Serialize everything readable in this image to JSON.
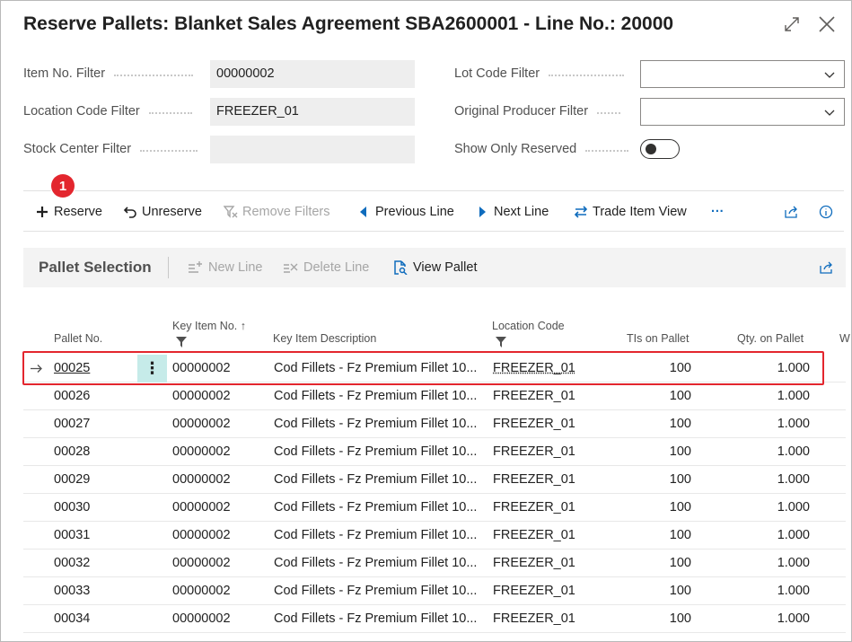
{
  "window": {
    "title": "Reserve Pallets: Blanket Sales Agreement SBA2600001 - Line No.: 20000",
    "expand_icon": "expand-icon",
    "close_icon": "close-icon"
  },
  "filters": {
    "item_no": {
      "label": "Item No. Filter",
      "value": "00000002"
    },
    "location_code": {
      "label": "Location Code Filter",
      "value": "FREEZER_01"
    },
    "stock_center": {
      "label": "Stock Center Filter",
      "value": ""
    },
    "lot_code": {
      "label": "Lot Code Filter",
      "value": ""
    },
    "original_producer": {
      "label": "Original Producer Filter",
      "value": ""
    },
    "show_only_reserved": {
      "label": "Show Only Reserved",
      "value": false
    }
  },
  "actions": {
    "reserve": "Reserve",
    "unreserve": "Unreserve",
    "remove_filters": "Remove Filters",
    "previous_line": "Previous Line",
    "next_line": "Next Line",
    "trade_item_view": "Trade Item View",
    "more": "···"
  },
  "badge": "1",
  "subpage": {
    "title": "Pallet Selection",
    "actions": {
      "new_line": "New Line",
      "delete_line": "Delete Line",
      "view_pallet": "View Pallet"
    },
    "columns": {
      "pallet_no": "Pallet No.",
      "key_item_no": "Key Item No.",
      "key_item_description": "Key Item Description",
      "location_code": "Location Code",
      "tis_on_pallet": "TIs on Pallet",
      "qty_on_pallet": "Qty. on Pallet",
      "extra": "W"
    },
    "rows": [
      {
        "pallet_no": "00025",
        "key_item_no": "00000002",
        "description": "Cod Fillets - Fz Premium Fillet 10...",
        "location": "FREEZER_01",
        "tis": "100",
        "qty": "1.000"
      },
      {
        "pallet_no": "00026",
        "key_item_no": "00000002",
        "description": "Cod Fillets - Fz Premium Fillet 10...",
        "location": "FREEZER_01",
        "tis": "100",
        "qty": "1.000"
      },
      {
        "pallet_no": "00027",
        "key_item_no": "00000002",
        "description": "Cod Fillets - Fz Premium Fillet 10...",
        "location": "FREEZER_01",
        "tis": "100",
        "qty": "1.000"
      },
      {
        "pallet_no": "00028",
        "key_item_no": "00000002",
        "description": "Cod Fillets - Fz Premium Fillet 10...",
        "location": "FREEZER_01",
        "tis": "100",
        "qty": "1.000"
      },
      {
        "pallet_no": "00029",
        "key_item_no": "00000002",
        "description": "Cod Fillets - Fz Premium Fillet 10...",
        "location": "FREEZER_01",
        "tis": "100",
        "qty": "1.000"
      },
      {
        "pallet_no": "00030",
        "key_item_no": "00000002",
        "description": "Cod Fillets - Fz Premium Fillet 10...",
        "location": "FREEZER_01",
        "tis": "100",
        "qty": "1.000"
      },
      {
        "pallet_no": "00031",
        "key_item_no": "00000002",
        "description": "Cod Fillets - Fz Premium Fillet 10...",
        "location": "FREEZER_01",
        "tis": "100",
        "qty": "1.000"
      },
      {
        "pallet_no": "00032",
        "key_item_no": "00000002",
        "description": "Cod Fillets - Fz Premium Fillet 10...",
        "location": "FREEZER_01",
        "tis": "100",
        "qty": "1.000"
      },
      {
        "pallet_no": "00033",
        "key_item_no": "00000002",
        "description": "Cod Fillets - Fz Premium Fillet 10...",
        "location": "FREEZER_01",
        "tis": "100",
        "qty": "1.000"
      },
      {
        "pallet_no": "00034",
        "key_item_no": "00000002",
        "description": "Cod Fillets - Fz Premium Fillet 10...",
        "location": "FREEZER_01",
        "tis": "100",
        "qty": "1.000"
      }
    ]
  },
  "colors": {
    "highlight": "#e3262e",
    "selected_cell": "#c6ebe9",
    "subpage_bg": "#f3f3f3",
    "accent": "#0f6cbd"
  }
}
